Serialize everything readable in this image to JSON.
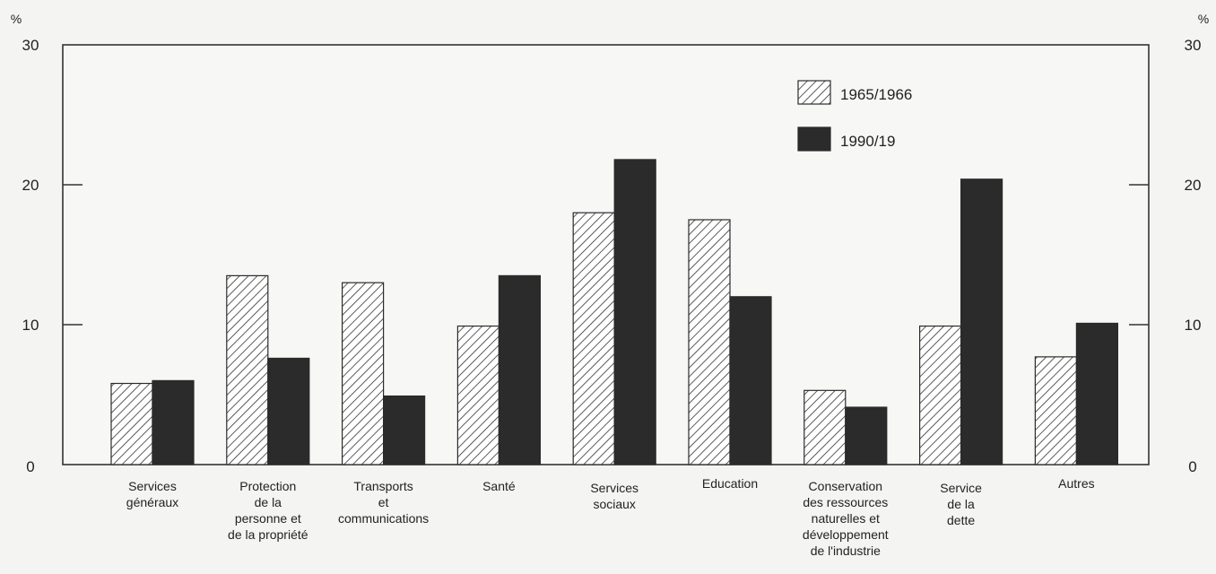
{
  "chart_data": {
    "type": "bar",
    "unit": "%",
    "categories": [
      [
        "Services",
        "généraux"
      ],
      [
        "Protection",
        "de la",
        "personne et",
        "de la propriété"
      ],
      [
        "Transports",
        "et",
        "communications"
      ],
      [
        "Santé"
      ],
      [
        "Services",
        "sociaux"
      ],
      [
        "Education"
      ],
      [
        "Conservation",
        "des ressources",
        "naturelles et",
        "développement",
        "de l'industrie"
      ],
      [
        "Service",
        "de la",
        "dette"
      ],
      [
        "Autres"
      ]
    ],
    "series": [
      {
        "name": "1965/1966",
        "pattern": "hatched",
        "values": [
          5.8,
          13.5,
          13.0,
          9.9,
          18.0,
          17.5,
          5.3,
          9.9,
          7.7
        ]
      },
      {
        "name": "1990/19",
        "pattern": "solid",
        "color": "#2b2b2b",
        "values": [
          6.0,
          7.6,
          4.9,
          13.5,
          21.8,
          12.0,
          4.1,
          20.4,
          10.1
        ]
      }
    ],
    "ylim": [
      0,
      30
    ],
    "yticks": [
      0,
      10,
      20,
      30
    ],
    "legend_position": "top-right",
    "grid": false
  }
}
